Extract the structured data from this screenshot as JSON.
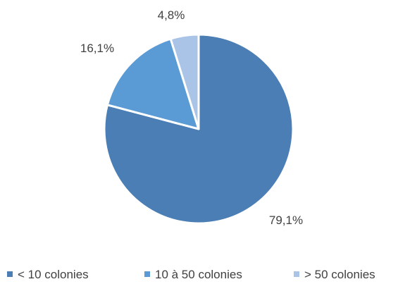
{
  "chart_data": {
    "type": "pie",
    "title": "",
    "slices": [
      {
        "label": "< 10 colonies",
        "value": 79.1,
        "value_label": "79,1%",
        "color": "#4a7eb4"
      },
      {
        "label": "10 à 50 colonies",
        "value": 16.1,
        "value_label": "16,1%",
        "color": "#5b9bd5"
      },
      {
        "label": "> 50 colonies",
        "value": 4.8,
        "value_label": "4,8%",
        "color": "#a9c4e6"
      }
    ],
    "start_angle_deg": 0,
    "direction": "clockwise",
    "slice_border_color": "#ffffff",
    "legend_position": "bottom"
  }
}
